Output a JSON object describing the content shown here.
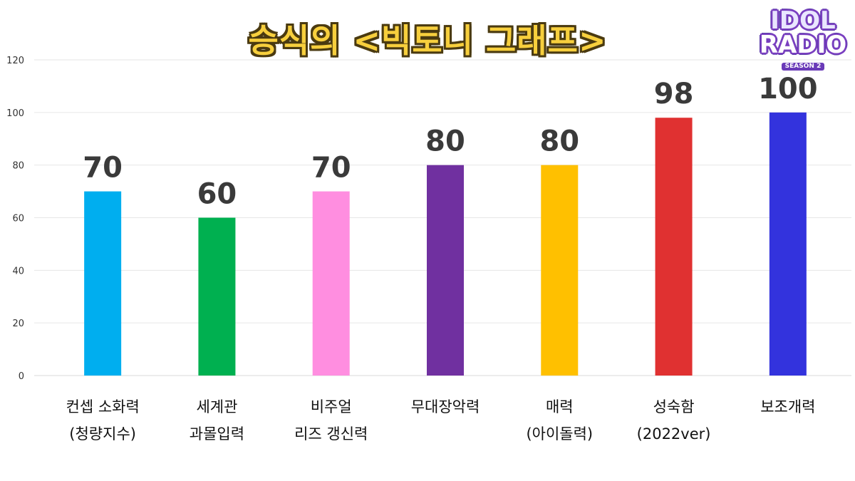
{
  "title": "승식의 <빅토니 그래프>",
  "logo": {
    "line1": "IDOL",
    "line2": "RADIO",
    "line3": "SEASON 2"
  },
  "chart_data": {
    "type": "bar",
    "title": "승식의 <빅토니 그래프>",
    "categories": [
      [
        "컨셉 소화력",
        "(청량지수)"
      ],
      [
        "세계관",
        "과몰입력"
      ],
      [
        "비주얼",
        "리즈 갱신력"
      ],
      [
        "무대장악력"
      ],
      [
        "매력",
        "(아이돌력)"
      ],
      [
        "성숙함",
        "(2022ver)"
      ],
      [
        "보조개력"
      ]
    ],
    "values": [
      70,
      60,
      70,
      80,
      80,
      98,
      100
    ],
    "data_labels": [
      "70",
      "60",
      "70",
      "80",
      "80",
      "98",
      "100"
    ],
    "colors": [
      "#00aeef",
      "#00b050",
      "#ff8ee0",
      "#7030a0",
      "#ffc000",
      "#e03131",
      "#3333dd"
    ],
    "ylim": [
      0,
      120
    ],
    "yticks": [
      "0",
      "20",
      "40",
      "60",
      "80",
      "100",
      "120"
    ],
    "grid": true,
    "legend": "none",
    "xlabel": "",
    "ylabel": ""
  }
}
